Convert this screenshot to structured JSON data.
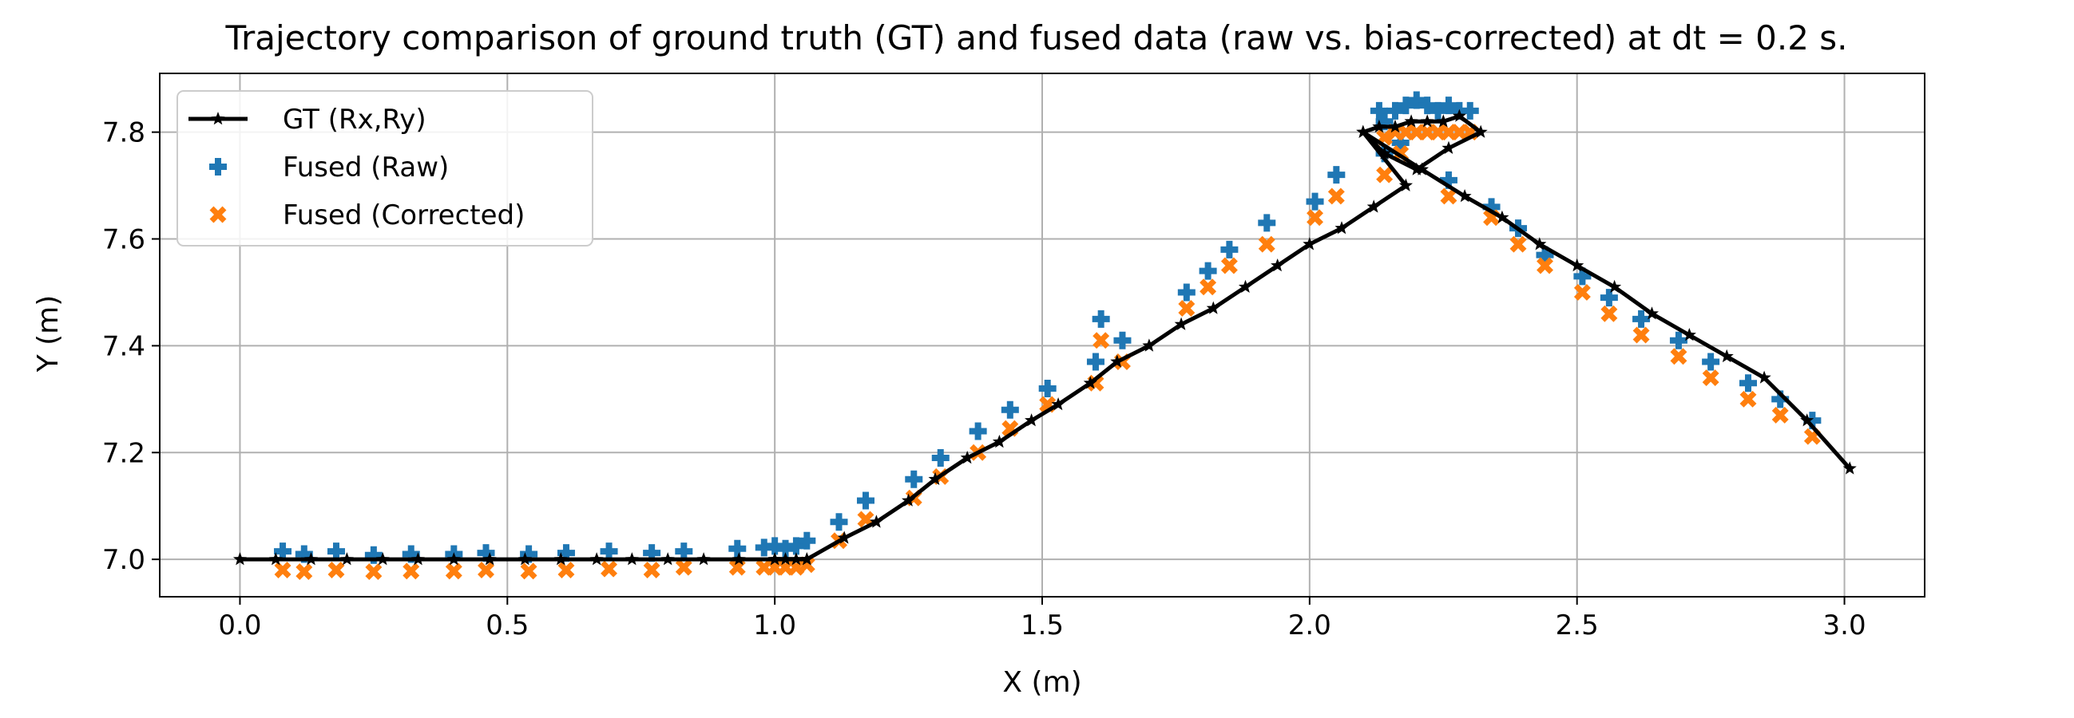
{
  "chart_data": {
    "type": "scatter",
    "title": "Trajectory comparison of ground truth (GT) and fused data (raw vs. bias-corrected) at dt = 0.2 s.",
    "xlabel": "X (m)",
    "ylabel": "Y (m)",
    "xlim": [
      -0.15,
      3.15
    ],
    "ylim": [
      6.93,
      7.91
    ],
    "x_ticks": [
      0.0,
      0.5,
      1.0,
      1.5,
      2.0,
      2.5,
      3.0
    ],
    "x_tick_labels": [
      "0.0",
      "0.5",
      "1.0",
      "1.5",
      "2.0",
      "2.5",
      "3.0"
    ],
    "y_ticks": [
      7.0,
      7.2,
      7.4,
      7.6,
      7.8
    ],
    "y_tick_labels": [
      "7.0",
      "7.2",
      "7.4",
      "7.6",
      "7.8"
    ],
    "grid": true,
    "legend_position": "upper-left",
    "series": [
      {
        "name": "GT (Rx,Ry)",
        "kind": "line-star",
        "color": "#000000",
        "x": [
          0.0,
          0.067,
          0.133,
          0.2,
          0.267,
          0.333,
          0.4,
          0.467,
          0.533,
          0.6,
          0.667,
          0.733,
          0.8,
          0.867,
          0.933,
          1.0,
          1.02,
          1.04,
          1.06,
          1.0,
          1.06,
          1.13,
          1.19,
          1.25,
          1.3,
          1.36,
          1.42,
          1.48,
          1.53,
          1.59,
          1.64,
          1.7,
          1.76,
          1.82,
          1.88,
          1.94,
          2.0,
          2.06,
          2.12,
          2.18,
          2.1,
          2.13,
          2.16,
          2.19,
          2.22,
          2.25,
          2.28,
          2.32,
          2.26,
          2.2,
          2.14,
          2.1,
          2.21,
          2.29,
          2.36,
          2.43,
          2.5,
          2.57,
          2.64,
          2.71,
          2.78,
          2.85,
          2.93,
          3.01
        ],
        "y": [
          7.0,
          7.0,
          7.0,
          7.0,
          7.0,
          7.0,
          7.0,
          7.0,
          7.0,
          7.0,
          7.0,
          7.0,
          7.0,
          7.0,
          7.0,
          7.0,
          7.0,
          7.0,
          7.0,
          7.0,
          7.0,
          7.04,
          7.07,
          7.11,
          7.15,
          7.19,
          7.22,
          7.26,
          7.29,
          7.33,
          7.37,
          7.4,
          7.44,
          7.47,
          7.51,
          7.55,
          7.59,
          7.62,
          7.66,
          7.7,
          7.8,
          7.81,
          7.81,
          7.82,
          7.82,
          7.82,
          7.83,
          7.8,
          7.77,
          7.73,
          7.76,
          7.8,
          7.73,
          7.68,
          7.64,
          7.59,
          7.55,
          7.51,
          7.46,
          7.42,
          7.38,
          7.34,
          7.26,
          7.17
        ]
      },
      {
        "name": "Fused (Raw)",
        "kind": "plus",
        "color": "#1f77b4",
        "x": [
          0.08,
          0.12,
          0.18,
          0.25,
          0.32,
          0.4,
          0.46,
          0.54,
          0.61,
          0.69,
          0.77,
          0.83,
          0.93,
          0.98,
          1.0,
          1.02,
          1.04,
          1.06,
          1.12,
          1.17,
          1.26,
          1.31,
          1.38,
          1.44,
          1.51,
          1.6,
          1.61,
          1.65,
          1.77,
          1.81,
          1.85,
          1.92,
          2.01,
          2.05,
          2.14,
          2.13,
          2.16,
          2.18,
          2.2,
          2.22,
          2.24,
          2.26,
          2.28,
          2.3,
          2.14,
          2.17,
          2.26,
          2.34,
          2.39,
          2.44,
          2.51,
          2.56,
          2.62,
          2.69,
          2.75,
          2.82,
          2.88,
          2.94
        ],
        "y": [
          7.015,
          7.01,
          7.015,
          7.008,
          7.01,
          7.01,
          7.012,
          7.01,
          7.012,
          7.015,
          7.012,
          7.015,
          7.02,
          7.022,
          7.025,
          7.02,
          7.025,
          7.035,
          7.07,
          7.11,
          7.15,
          7.19,
          7.24,
          7.28,
          7.32,
          7.37,
          7.45,
          7.41,
          7.5,
          7.54,
          7.58,
          7.63,
          7.67,
          7.72,
          7.82,
          7.84,
          7.84,
          7.85,
          7.86,
          7.85,
          7.84,
          7.85,
          7.84,
          7.84,
          7.76,
          7.78,
          7.71,
          7.66,
          7.62,
          7.57,
          7.53,
          7.49,
          7.45,
          7.41,
          7.37,
          7.33,
          7.3,
          7.26
        ]
      },
      {
        "name": "Fused (Corrected)",
        "kind": "x",
        "color": "#ff7f0e",
        "x": [
          0.08,
          0.12,
          0.18,
          0.25,
          0.32,
          0.4,
          0.46,
          0.54,
          0.61,
          0.69,
          0.77,
          0.83,
          0.93,
          0.98,
          1.0,
          1.02,
          1.04,
          1.06,
          1.12,
          1.17,
          1.26,
          1.31,
          1.38,
          1.44,
          1.51,
          1.6,
          1.61,
          1.65,
          1.77,
          1.81,
          1.85,
          1.92,
          2.01,
          2.05,
          2.14,
          2.16,
          2.18,
          2.2,
          2.22,
          2.24,
          2.26,
          2.28,
          2.3,
          2.14,
          2.17,
          2.26,
          2.34,
          2.39,
          2.44,
          2.51,
          2.56,
          2.62,
          2.69,
          2.75,
          2.82,
          2.88,
          2.94
        ],
        "y": [
          6.98,
          6.977,
          6.98,
          6.977,
          6.978,
          6.978,
          6.98,
          6.978,
          6.98,
          6.982,
          6.98,
          6.985,
          6.985,
          6.985,
          6.985,
          6.985,
          6.985,
          6.99,
          7.035,
          7.075,
          7.115,
          7.155,
          7.2,
          7.245,
          7.29,
          7.33,
          7.41,
          7.37,
          7.47,
          7.51,
          7.55,
          7.59,
          7.64,
          7.68,
          7.79,
          7.8,
          7.8,
          7.8,
          7.8,
          7.8,
          7.8,
          7.8,
          7.8,
          7.72,
          7.76,
          7.68,
          7.64,
          7.59,
          7.55,
          7.5,
          7.46,
          7.42,
          7.38,
          7.34,
          7.3,
          7.27,
          7.23
        ]
      }
    ]
  }
}
